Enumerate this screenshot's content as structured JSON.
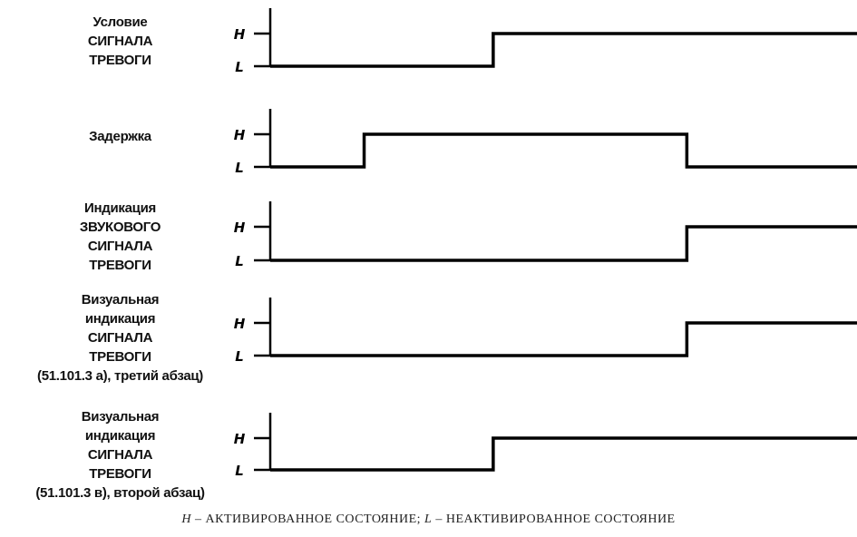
{
  "levels": {
    "high": "H",
    "low": "L"
  },
  "signals": [
    {
      "label_lines": [
        "Условие",
        "СИГНАЛА",
        "ТРЕВОГИ"
      ],
      "initial": "L",
      "transitions": [
        {
          "at": 0.38,
          "to": "H"
        }
      ]
    },
    {
      "label_lines": [
        "Задержка"
      ],
      "initial": "L",
      "transitions": [
        {
          "at": 0.16,
          "to": "H"
        },
        {
          "at": 0.71,
          "to": "L"
        }
      ]
    },
    {
      "label_lines": [
        "Индикация",
        "ЗВУКОВОГО",
        "СИГНАЛА",
        "ТРЕВОГИ"
      ],
      "initial": "L",
      "transitions": [
        {
          "at": 0.71,
          "to": "H"
        }
      ]
    },
    {
      "label_lines": [
        "Визуальная",
        "индикация",
        "СИГНАЛА",
        "ТРЕВОГИ",
        "(51.101.3 а), третий абзац)"
      ],
      "initial": "L",
      "transitions": [
        {
          "at": 0.71,
          "to": "H"
        }
      ]
    },
    {
      "label_lines": [
        "Визуальная",
        "индикация",
        "СИГНАЛА",
        "ТРЕВОГИ",
        "(51.101.3 в), второй абзац)"
      ],
      "initial": "L",
      "transitions": [
        {
          "at": 0.38,
          "to": "H"
        }
      ]
    }
  ],
  "caption": {
    "h": "H",
    "h_text": " – АКТИВИРОВАННОЕ СОСТОЯНИЕ; ",
    "l": "L",
    "l_text": " – НЕАКТИВИРОВАННОЕ СОСТОЯНИЕ"
  }
}
